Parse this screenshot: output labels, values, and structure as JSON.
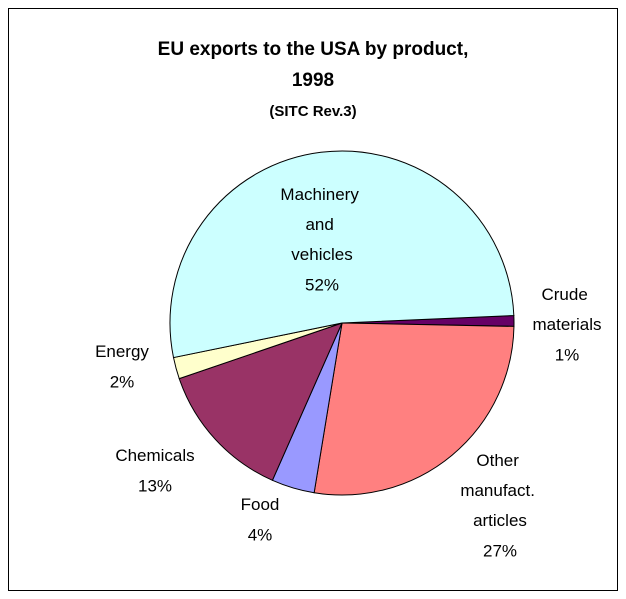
{
  "chart_data": {
    "type": "pie",
    "title": "EU exports to the USA by product,",
    "title_line2": "1998",
    "subtitle": "(SITC Rev.3)",
    "categories": [
      "Crude materials",
      "Other manufact. articles",
      "Food",
      "Chemicals",
      "Energy",
      "Machinery and vehicles"
    ],
    "values": [
      1,
      27,
      4,
      13,
      2,
      52
    ],
    "value_labels": [
      "1%",
      "27%",
      "4%",
      "13%",
      "2%",
      "52%"
    ],
    "colors": [
      "#660066",
      "#ff8080",
      "#9999ff",
      "#993366",
      "#ffffcc",
      "#ccffff"
    ]
  }
}
